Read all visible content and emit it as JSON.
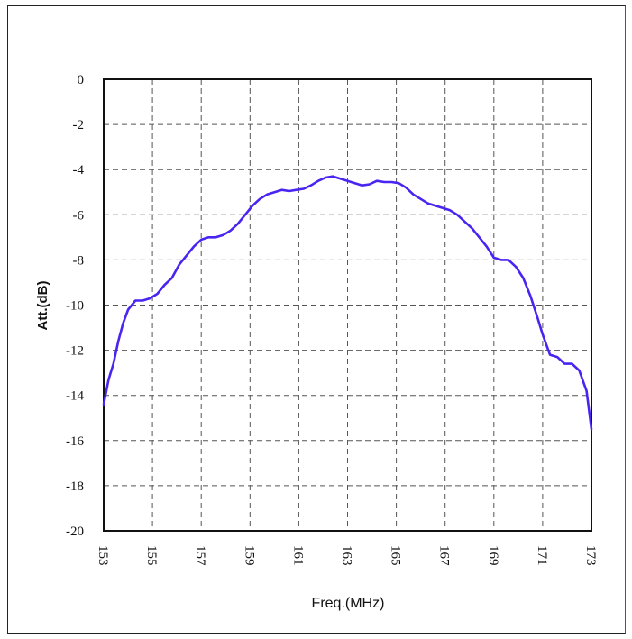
{
  "chart_data": {
    "type": "line",
    "title": "",
    "xlabel": "Freq.(MHz)",
    "ylabel": "Att.(dB)",
    "xlim": [
      153,
      173
    ],
    "ylim": [
      -20,
      0
    ],
    "xticks": [
      "153",
      "155",
      "157",
      "159",
      "161",
      "163",
      "165",
      "167",
      "169",
      "171",
      "173"
    ],
    "yticks": [
      "0",
      "-2",
      "-4",
      "-6",
      "-8",
      "-10",
      "-12",
      "-14",
      "-16",
      "-18",
      "-20"
    ],
    "grid": true,
    "series": [
      {
        "color": "#4a24f0",
        "x": [
          153.0,
          153.2,
          153.4,
          153.6,
          153.8,
          154.0,
          154.3,
          154.6,
          154.9,
          155.2,
          155.5,
          155.8,
          156.1,
          156.4,
          156.7,
          157.0,
          157.3,
          157.6,
          157.9,
          158.2,
          158.5,
          158.8,
          159.1,
          159.4,
          159.7,
          160.0,
          160.3,
          160.6,
          160.9,
          161.2,
          161.5,
          161.8,
          162.1,
          162.4,
          162.7,
          163.0,
          163.3,
          163.6,
          163.9,
          164.2,
          164.5,
          164.8,
          165.1,
          165.4,
          165.7,
          166.0,
          166.3,
          166.6,
          166.9,
          167.2,
          167.5,
          167.8,
          168.1,
          168.4,
          168.7,
          169.0,
          169.3,
          169.6,
          169.9,
          170.2,
          170.5,
          170.8,
          171.0,
          171.3,
          171.6,
          171.9,
          172.2,
          172.5,
          172.8,
          173.0
        ],
        "y": [
          -14.4,
          -13.3,
          -12.6,
          -11.6,
          -10.8,
          -10.2,
          -9.8,
          -9.8,
          -9.7,
          -9.5,
          -9.1,
          -8.8,
          -8.2,
          -7.8,
          -7.4,
          -7.1,
          -7.0,
          -7.0,
          -6.9,
          -6.7,
          -6.4,
          -6.0,
          -5.6,
          -5.3,
          -5.1,
          -5.0,
          -4.9,
          -4.95,
          -4.9,
          -4.85,
          -4.7,
          -4.5,
          -4.35,
          -4.3,
          -4.4,
          -4.5,
          -4.6,
          -4.7,
          -4.65,
          -4.5,
          -4.55,
          -4.55,
          -4.6,
          -4.8,
          -5.1,
          -5.3,
          -5.5,
          -5.6,
          -5.7,
          -5.8,
          -6.0,
          -6.3,
          -6.6,
          -7.0,
          -7.4,
          -7.9,
          -8.0,
          -8.0,
          -8.3,
          -8.8,
          -9.6,
          -10.6,
          -11.3,
          -12.2,
          -12.3,
          -12.6,
          -12.6,
          -12.9,
          -13.8,
          -15.5
        ]
      }
    ]
  }
}
